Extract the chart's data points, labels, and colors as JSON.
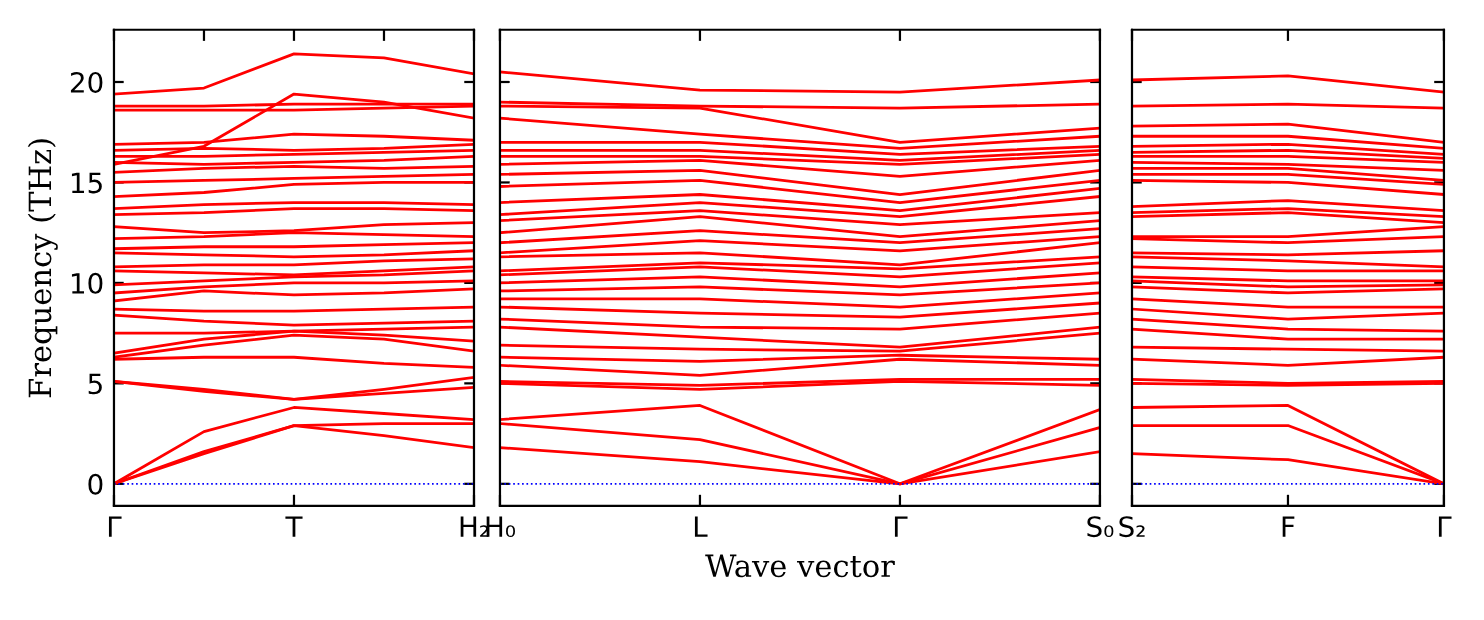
{
  "chart_data": [
    {
      "type": "line",
      "ylabel": "Frequency (THz)",
      "categories": [
        "Γ",
        null,
        "T",
        null,
        "H₂"
      ],
      "ylim": [
        -1.1,
        22.6
      ],
      "yticks": [
        0,
        5,
        10,
        15,
        20
      ],
      "ref_lines": [
        {
          "axis": "y",
          "value": 0,
          "color": "#0000ff",
          "line_style": "dotted"
        }
      ],
      "series": [
        {
          "color": "#ff0000",
          "values": [
            0,
            1.5,
            2.9,
            2.4,
            1.8
          ]
        },
        {
          "color": "#ff0000",
          "values": [
            0,
            1.6,
            2.9,
            3.0,
            3.0
          ]
        },
        {
          "color": "#ff0000",
          "values": [
            0,
            2.6,
            3.8,
            3.5,
            3.2
          ]
        },
        {
          "color": "#ff0000",
          "values": [
            5.1,
            4.6,
            4.2,
            4.5,
            4.8
          ]
        },
        {
          "color": "#ff0000",
          "values": [
            5.1,
            4.7,
            4.2,
            4.7,
            5.3
          ]
        },
        {
          "color": "#ff0000",
          "values": [
            6.2,
            6.3,
            6.3,
            6.0,
            5.8
          ]
        },
        {
          "color": "#ff0000",
          "values": [
            6.3,
            6.9,
            7.4,
            7.2,
            6.6
          ]
        },
        {
          "color": "#ff0000",
          "values": [
            6.5,
            7.2,
            7.6,
            7.4,
            7.1
          ]
        },
        {
          "color": "#ff0000",
          "values": [
            7.5,
            7.5,
            7.6,
            7.7,
            7.8
          ]
        },
        {
          "color": "#ff0000",
          "values": [
            8.4,
            8.1,
            7.9,
            8.0,
            8.1
          ]
        },
        {
          "color": "#ff0000",
          "values": [
            8.7,
            8.6,
            8.6,
            8.7,
            8.8
          ]
        },
        {
          "color": "#ff0000",
          "values": [
            9.1,
            9.6,
            9.4,
            9.5,
            9.7
          ]
        },
        {
          "color": "#ff0000",
          "values": [
            9.5,
            9.8,
            10.0,
            10.0,
            10.1
          ]
        },
        {
          "color": "#ff0000",
          "values": [
            9.9,
            10.1,
            10.3,
            10.4,
            10.6
          ]
        },
        {
          "color": "#ff0000",
          "values": [
            10.6,
            10.5,
            10.4,
            10.6,
            10.8
          ]
        },
        {
          "color": "#ff0000",
          "values": [
            10.8,
            10.9,
            10.9,
            11.1,
            11.2
          ]
        },
        {
          "color": "#ff0000",
          "values": [
            11.5,
            11.4,
            11.3,
            11.4,
            11.6
          ]
        },
        {
          "color": "#ff0000",
          "values": [
            11.7,
            11.8,
            11.8,
            11.9,
            12.0
          ]
        },
        {
          "color": "#ff0000",
          "values": [
            12.2,
            12.3,
            12.5,
            12.4,
            12.3
          ]
        },
        {
          "color": "#ff0000",
          "values": [
            12.8,
            12.5,
            12.6,
            12.9,
            13.0
          ]
        },
        {
          "color": "#ff0000",
          "values": [
            13.4,
            13.5,
            13.7,
            13.7,
            13.6
          ]
        },
        {
          "color": "#ff0000",
          "values": [
            13.7,
            13.9,
            14.0,
            14.0,
            13.9
          ]
        },
        {
          "color": "#ff0000",
          "values": [
            14.3,
            14.5,
            14.9,
            15.0,
            15.0
          ]
        },
        {
          "color": "#ff0000",
          "values": [
            15.0,
            15.1,
            15.2,
            15.3,
            15.4
          ]
        },
        {
          "color": "#ff0000",
          "values": [
            15.5,
            15.7,
            15.8,
            15.7,
            15.8
          ]
        },
        {
          "color": "#ff0000",
          "values": [
            16.0,
            15.9,
            16.0,
            16.1,
            16.3
          ]
        },
        {
          "color": "#ff0000",
          "values": [
            16.3,
            16.3,
            16.4,
            16.5,
            16.6
          ]
        },
        {
          "color": "#ff0000",
          "values": [
            16.6,
            16.7,
            16.6,
            16.7,
            16.9
          ]
        },
        {
          "color": "#ff0000",
          "values": [
            16.9,
            17.0,
            17.4,
            17.3,
            17.1
          ]
        },
        {
          "color": "#ff0000",
          "values": [
            15.9,
            16.8,
            19.4,
            19.0,
            18.2
          ]
        },
        {
          "color": "#ff0000",
          "values": [
            18.6,
            18.6,
            18.6,
            18.7,
            18.8
          ]
        },
        {
          "color": "#ff0000",
          "values": [
            18.8,
            18.8,
            18.9,
            18.9,
            18.9
          ]
        },
        {
          "color": "#ff0000",
          "values": [
            19.4,
            19.7,
            21.4,
            21.2,
            20.4
          ]
        }
      ],
      "tick_labels": "xy"
    },
    {
      "type": "line",
      "xlabel": "Wave vector",
      "categories": [
        "H₀",
        "L",
        "Γ",
        "S₀"
      ],
      "ylim": [
        -1.1,
        22.6
      ],
      "ref_lines": [
        {
          "axis": "y",
          "value": 0,
          "color": "#0000ff",
          "line_style": "dotted"
        }
      ],
      "tick_labels": "x",
      "series": [
        {
          "color": "#ff0000",
          "values": [
            1.8,
            1.1,
            0,
            1.6
          ]
        },
        {
          "color": "#ff0000",
          "values": [
            3.0,
            2.2,
            0,
            2.8
          ]
        },
        {
          "color": "#ff0000",
          "values": [
            3.2,
            3.9,
            0,
            3.7
          ]
        },
        {
          "color": "#ff0000",
          "values": [
            5.0,
            4.7,
            5.1,
            4.9
          ]
        },
        {
          "color": "#ff0000",
          "values": [
            5.1,
            4.9,
            5.2,
            5.2
          ]
        },
        {
          "color": "#ff0000",
          "values": [
            5.9,
            5.4,
            6.2,
            5.9
          ]
        },
        {
          "color": "#ff0000",
          "values": [
            6.3,
            6.1,
            6.4,
            6.2
          ]
        },
        {
          "color": "#ff0000",
          "values": [
            6.9,
            6.7,
            6.6,
            7.5
          ]
        },
        {
          "color": "#ff0000",
          "values": [
            7.8,
            7.3,
            6.8,
            7.8
          ]
        },
        {
          "color": "#ff0000",
          "values": [
            8.2,
            7.8,
            7.7,
            8.5
          ]
        },
        {
          "color": "#ff0000",
          "values": [
            8.8,
            8.5,
            8.3,
            9.0
          ]
        },
        {
          "color": "#ff0000",
          "values": [
            9.2,
            9.2,
            8.8,
            9.5
          ]
        },
        {
          "color": "#ff0000",
          "values": [
            9.6,
            9.8,
            9.4,
            10.0
          ]
        },
        {
          "color": "#ff0000",
          "values": [
            10.0,
            10.3,
            9.8,
            10.5
          ]
        },
        {
          "color": "#ff0000",
          "values": [
            10.4,
            10.8,
            10.3,
            11.0
          ]
        },
        {
          "color": "#ff0000",
          "values": [
            10.6,
            11.0,
            10.7,
            11.3
          ]
        },
        {
          "color": "#ff0000",
          "values": [
            11.3,
            11.5,
            10.9,
            12.0
          ]
        },
        {
          "color": "#ff0000",
          "values": [
            11.5,
            12.1,
            11.6,
            12.3
          ]
        },
        {
          "color": "#ff0000",
          "values": [
            12.0,
            12.6,
            12.0,
            12.7
          ]
        },
        {
          "color": "#ff0000",
          "values": [
            12.5,
            13.3,
            12.3,
            13.1
          ]
        },
        {
          "color": "#ff0000",
          "values": [
            13.1,
            13.6,
            12.9,
            13.5
          ]
        },
        {
          "color": "#ff0000",
          "values": [
            13.4,
            14.0,
            13.3,
            14.3
          ]
        },
        {
          "color": "#ff0000",
          "values": [
            14.0,
            14.4,
            13.6,
            14.7
          ]
        },
        {
          "color": "#ff0000",
          "values": [
            14.8,
            15.1,
            14.0,
            15.1
          ]
        },
        {
          "color": "#ff0000",
          "values": [
            15.4,
            15.6,
            14.4,
            15.6
          ]
        },
        {
          "color": "#ff0000",
          "values": [
            15.9,
            16.1,
            15.3,
            16.1
          ]
        },
        {
          "color": "#ff0000",
          "values": [
            16.3,
            16.3,
            15.9,
            16.4
          ]
        },
        {
          "color": "#ff0000",
          "values": [
            16.6,
            16.6,
            16.1,
            16.6
          ]
        },
        {
          "color": "#ff0000",
          "values": [
            17.0,
            17.0,
            16.4,
            16.8
          ]
        },
        {
          "color": "#ff0000",
          "values": [
            18.2,
            17.4,
            16.7,
            17.3
          ]
        },
        {
          "color": "#ff0000",
          "values": [
            18.8,
            18.7,
            17.0,
            17.7
          ]
        },
        {
          "color": "#ff0000",
          "values": [
            19.0,
            18.8,
            18.7,
            18.9
          ]
        },
        {
          "color": "#ff0000",
          "values": [
            20.5,
            19.6,
            19.5,
            20.1
          ]
        }
      ]
    },
    {
      "type": "line",
      "categories": [
        "S₂",
        "F",
        "Γ"
      ],
      "ylim": [
        -1.1,
        22.6
      ],
      "ref_lines": [
        {
          "axis": "y",
          "value": 0,
          "color": "#0000ff",
          "line_style": "dotted"
        }
      ],
      "tick_labels": "x",
      "series": [
        {
          "color": "#ff0000",
          "values": [
            1.5,
            1.2,
            0
          ]
        },
        {
          "color": "#ff0000",
          "values": [
            2.9,
            2.9,
            0
          ]
        },
        {
          "color": "#ff0000",
          "values": [
            3.8,
            3.9,
            0
          ]
        },
        {
          "color": "#ff0000",
          "values": [
            5.0,
            4.9,
            5.0
          ]
        },
        {
          "color": "#ff0000",
          "values": [
            5.2,
            5.0,
            5.1
          ]
        },
        {
          "color": "#ff0000",
          "values": [
            6.2,
            5.9,
            6.3
          ]
        },
        {
          "color": "#ff0000",
          "values": [
            6.8,
            6.7,
            6.6
          ]
        },
        {
          "color": "#ff0000",
          "values": [
            7.7,
            7.2,
            7.2
          ]
        },
        {
          "color": "#ff0000",
          "values": [
            8.2,
            7.7,
            7.6
          ]
        },
        {
          "color": "#ff0000",
          "values": [
            8.7,
            8.2,
            8.5
          ]
        },
        {
          "color": "#ff0000",
          "values": [
            9.2,
            8.8,
            8.8
          ]
        },
        {
          "color": "#ff0000",
          "values": [
            9.8,
            9.5,
            9.7
          ]
        },
        {
          "color": "#ff0000",
          "values": [
            10.1,
            9.8,
            9.9
          ]
        },
        {
          "color": "#ff0000",
          "values": [
            10.3,
            10.1,
            10.1
          ]
        },
        {
          "color": "#ff0000",
          "values": [
            10.8,
            10.6,
            10.6
          ]
        },
        {
          "color": "#ff0000",
          "values": [
            11.3,
            11.1,
            10.8
          ]
        },
        {
          "color": "#ff0000",
          "values": [
            11.5,
            11.4,
            11.6
          ]
        },
        {
          "color": "#ff0000",
          "values": [
            12.2,
            12.0,
            12.3
          ]
        },
        {
          "color": "#ff0000",
          "values": [
            12.3,
            12.3,
            12.8
          ]
        },
        {
          "color": "#ff0000",
          "values": [
            13.3,
            13.5,
            13.0
          ]
        },
        {
          "color": "#ff0000",
          "values": [
            13.5,
            13.7,
            13.3
          ]
        },
        {
          "color": "#ff0000",
          "values": [
            13.8,
            14.1,
            13.6
          ]
        },
        {
          "color": "#ff0000",
          "values": [
            15.1,
            15.0,
            14.4
          ]
        },
        {
          "color": "#ff0000",
          "values": [
            15.4,
            15.4,
            14.9
          ]
        },
        {
          "color": "#ff0000",
          "values": [
            15.7,
            15.7,
            15.1
          ]
        },
        {
          "color": "#ff0000",
          "values": [
            16.0,
            15.9,
            15.6
          ]
        },
        {
          "color": "#ff0000",
          "values": [
            16.3,
            16.3,
            16.0
          ]
        },
        {
          "color": "#ff0000",
          "values": [
            16.5,
            16.6,
            16.2
          ]
        },
        {
          "color": "#ff0000",
          "values": [
            16.8,
            16.9,
            16.4
          ]
        },
        {
          "color": "#ff0000",
          "values": [
            17.3,
            17.3,
            16.7
          ]
        },
        {
          "color": "#ff0000",
          "values": [
            17.8,
            17.9,
            17.0
          ]
        },
        {
          "color": "#ff0000",
          "values": [
            18.8,
            18.9,
            18.7
          ]
        },
        {
          "color": "#ff0000",
          "values": [
            20.1,
            20.3,
            19.5
          ]
        }
      ]
    }
  ]
}
